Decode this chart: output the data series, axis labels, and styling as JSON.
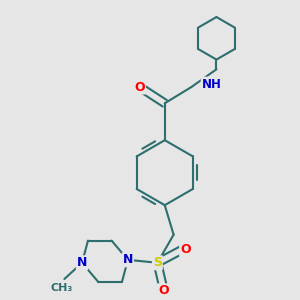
{
  "bg_color": "#e6e6e6",
  "bond_color": "#2d6e6e",
  "bond_width": 1.5,
  "atom_colors": {
    "O": "#ff0000",
    "N": "#0000cc",
    "S": "#cccc00",
    "H": "#666666",
    "C": "#2d6e6e"
  },
  "figsize": [
    3.0,
    3.0
  ],
  "dpi": 100
}
